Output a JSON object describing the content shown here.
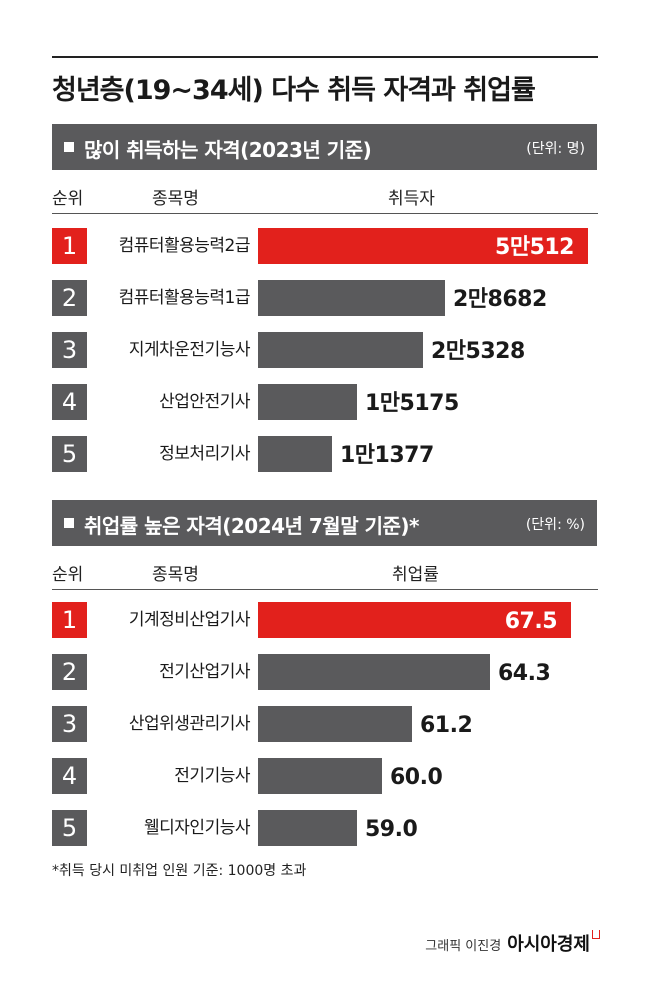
{
  "title": "청년층(19~34세) 다수 취득 자격과 취업률",
  "chart_data": [
    {
      "type": "bar",
      "title": "많이 취득하는 자격(2023년 기준)",
      "unit": "(단위: 명)",
      "columns": [
        "순위",
        "종목명",
        "취득자"
      ],
      "ranks": [
        "1",
        "2",
        "3",
        "4",
        "5"
      ],
      "categories": [
        "컴퓨터활용능력2급",
        "컴퓨터활용능력1급",
        "지게차운전기능사",
        "산업안전기사",
        "정보처리기사"
      ],
      "values": [
        50512,
        28682,
        25328,
        15175,
        11377
      ],
      "value_labels": [
        "5만512",
        "2만8682",
        "2만5328",
        "1만5175",
        "1만1377"
      ],
      "highlight_color": "#e2211c",
      "bar_color": "#5a5a5c"
    },
    {
      "type": "bar",
      "title": "취업률 높은 자격(2024년 7월말 기준)*",
      "unit": "(단위: %)",
      "columns": [
        "순위",
        "종목명",
        "취업률"
      ],
      "ranks": [
        "1",
        "2",
        "3",
        "4",
        "5"
      ],
      "categories": [
        "기계정비산업기사",
        "전기산업기사",
        "산업위생관리기사",
        "전기기능사",
        "웰디자인기능사"
      ],
      "values": [
        67.5,
        64.3,
        61.2,
        60.0,
        59.0
      ],
      "value_labels": [
        "67.5",
        "64.3",
        "61.2",
        "60.0",
        "59.0"
      ],
      "highlight_color": "#e2211c",
      "bar_color": "#5a5a5c"
    }
  ],
  "footnote": "*취득 당시 미취업 인원 기준: 1000명 초과",
  "credit": {
    "graphic": "그래픽 이진경",
    "publisher": "아시아경제"
  }
}
